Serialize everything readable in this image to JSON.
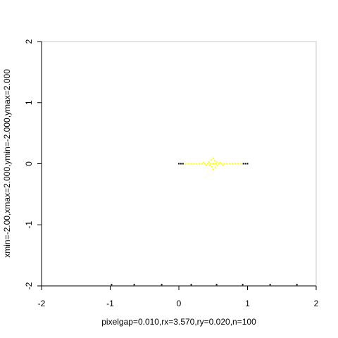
{
  "chart_data": {
    "type": "scatter",
    "title": "",
    "xlabel": "pixelgap=0.010,rx=3.570,ry=0.020,n=100",
    "ylabel": "xmin=-2.00,xmax=2.000,ymin=-2.000,ymax=2.000",
    "xlim": [
      -2,
      2
    ],
    "ylim": [
      -2,
      2
    ],
    "grid": false,
    "x_ticks": [
      -2,
      -1,
      0,
      1,
      2
    ],
    "y_ticks": [
      -2,
      -1,
      0,
      1,
      2
    ],
    "x_tick_labels": [
      "-2",
      "-1",
      "0",
      "1",
      "2"
    ],
    "y_tick_labels": [
      "-2",
      "-1",
      "0",
      "1",
      "2"
    ],
    "colors": {
      "points_main": "#ffff00",
      "points_edge": "#000000",
      "axis": "#000000",
      "box": "#c8c8c8"
    },
    "series": [
      {
        "color": "#000000",
        "points": [
          [
            0.0,
            0.0
          ],
          [
            0.03,
            0.0
          ],
          [
            0.06,
            0.0
          ],
          [
            0.94,
            0.0
          ],
          [
            0.97,
            0.0
          ],
          [
            1.0,
            0.0
          ],
          [
            -0.98,
            -1.98
          ],
          [
            -0.65,
            -1.98
          ],
          [
            -0.25,
            -1.98
          ],
          [
            0.18,
            -1.98
          ],
          [
            0.55,
            -1.98
          ],
          [
            0.93,
            -1.98
          ],
          [
            1.33,
            -1.98
          ],
          [
            1.72,
            -1.98
          ]
        ]
      },
      {
        "color": "#ffff00",
        "points": [
          [
            0.1,
            0.0
          ],
          [
            0.14,
            0.0
          ],
          [
            0.18,
            0.0
          ],
          [
            0.22,
            0.0
          ],
          [
            0.26,
            0.0
          ],
          [
            0.3,
            0.0
          ],
          [
            0.34,
            0.0
          ],
          [
            0.36,
            0.02
          ],
          [
            0.38,
            0.0
          ],
          [
            0.4,
            -0.02
          ],
          [
            0.42,
            0.0
          ],
          [
            0.44,
            0.03
          ],
          [
            0.45,
            -0.03
          ],
          [
            0.46,
            0.0
          ],
          [
            0.47,
            0.06
          ],
          [
            0.48,
            -0.05
          ],
          [
            0.49,
            0.0
          ],
          [
            0.5,
            0.0
          ],
          [
            0.5,
            0.09
          ],
          [
            0.5,
            -0.09
          ],
          [
            0.51,
            0.0
          ],
          [
            0.52,
            0.05
          ],
          [
            0.53,
            -0.06
          ],
          [
            0.54,
            0.0
          ],
          [
            0.55,
            0.03
          ],
          [
            0.56,
            -0.03
          ],
          [
            0.58,
            0.0
          ],
          [
            0.6,
            0.02
          ],
          [
            0.62,
            0.0
          ],
          [
            0.64,
            -0.02
          ],
          [
            0.66,
            0.0
          ],
          [
            0.7,
            0.0
          ],
          [
            0.74,
            0.0
          ],
          [
            0.78,
            0.0
          ],
          [
            0.82,
            0.0
          ],
          [
            0.86,
            0.0
          ],
          [
            0.9,
            0.0
          ]
        ]
      }
    ]
  }
}
